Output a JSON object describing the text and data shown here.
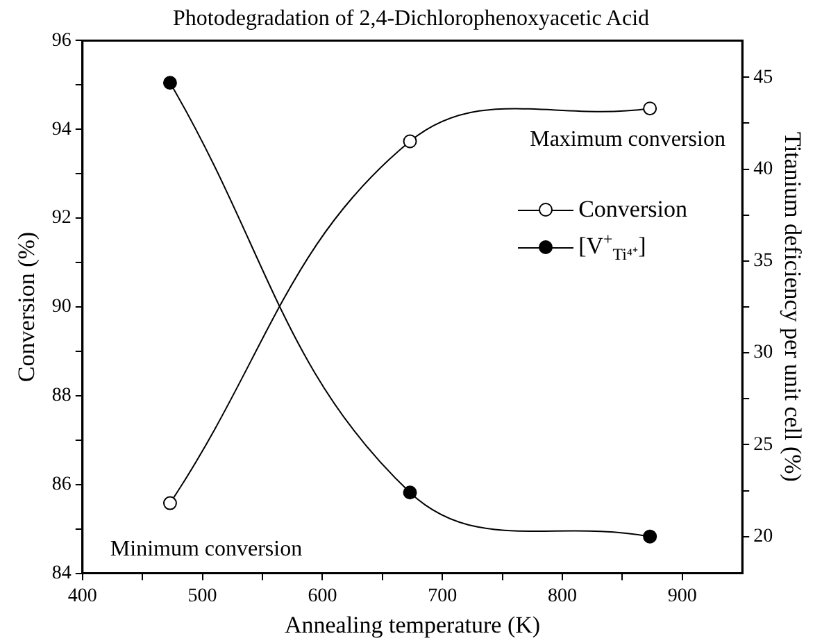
{
  "chart_data": {
    "type": "line",
    "title": "Photodegradation of 2,4-Dichlorophenoxyacetic Acid",
    "xlabel": "Annealing temperature (K)",
    "ylabel": "Conversion (%)",
    "y2label": "Titanium deficiency per unit cell (%)",
    "x": [
      473,
      673,
      873
    ],
    "series": [
      {
        "name": "Conversion",
        "color": "#000000",
        "values": [
          85.58,
          93.73,
          94.47
        ]
      },
      {
        "name": "[V$^{+}$$_{Ti⁴⁺}$]",
        "color": "#000000",
        "axis": "y2",
        "values": [
          44.7,
          22.4,
          20.0
        ]
      }
    ],
    "xlim": [
      400,
      950
    ],
    "xticks": [
      400,
      {
        "value": 450,
        "label": null
      },
      500,
      {
        "value": 550,
        "label": null
      },
      600,
      {
        "value": 650,
        "label": null
      },
      700,
      {
        "value": 750,
        "label": null
      },
      800,
      {
        "value": 850,
        "label": null
      },
      900
    ],
    "ylim": [
      84,
      96
    ],
    "yticks": [
      84,
      {
        "value": 85,
        "label": null
      },
      86,
      {
        "value": 87,
        "label": null
      },
      88,
      {
        "value": 89,
        "label": null
      },
      90,
      {
        "value": 91,
        "label": null
      },
      92,
      {
        "value": 93,
        "label": null
      },
      94,
      {
        "value": 95,
        "label": null
      },
      96
    ],
    "y2lim": [
      18,
      47
    ],
    "y2ticks": [
      20,
      {
        "value": 22.5,
        "label": null
      },
      25,
      {
        "value": 27.5,
        "label": null
      },
      30,
      {
        "value": 32.5,
        "label": null
      },
      35,
      {
        "value": 37.5,
        "label": null
      },
      40,
      {
        "value": 42.5,
        "label": null
      },
      45
    ],
    "annotations": [
      "Maximum conversion",
      "Minimum conversion"
    ],
    "legend": "right",
    "marker": "circle",
    "line_style": "solid",
    "grid": false
  }
}
